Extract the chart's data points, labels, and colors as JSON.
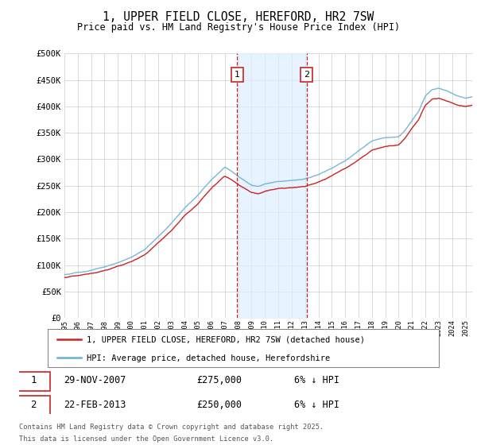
{
  "title": "1, UPPER FIELD CLOSE, HEREFORD, HR2 7SW",
  "subtitle": "Price paid vs. HM Land Registry's House Price Index (HPI)",
  "legend_line1": "1, UPPER FIELD CLOSE, HEREFORD, HR2 7SW (detached house)",
  "legend_line2": "HPI: Average price, detached house, Herefordshire",
  "sale1_date": "29-NOV-2007",
  "sale1_price": "£275,000",
  "sale1_pct": "6% ↓ HPI",
  "sale2_date": "22-FEB-2013",
  "sale2_price": "£250,000",
  "sale2_pct": "6% ↓ HPI",
  "footnote1": "Contains HM Land Registry data © Crown copyright and database right 2025.",
  "footnote2": "This data is licensed under the Open Government Licence v3.0.",
  "hpi_color": "#6baed6",
  "price_color": "#cc2222",
  "vline_color": "#cc2222",
  "shading_color": "#ddeeff",
  "grid_color": "#cccccc",
  "ylim": [
    0,
    500000
  ],
  "yticks": [
    0,
    50000,
    100000,
    150000,
    200000,
    250000,
    300000,
    350000,
    400000,
    450000,
    500000
  ],
  "xlim_start": 1995,
  "xlim_end": 2025.5,
  "sale1_year": 2007.91,
  "sale2_year": 2013.13,
  "hpi_points_x": [
    1995,
    1996,
    1997,
    1998,
    1999,
    2000,
    2001,
    2002,
    2003,
    2004,
    2005,
    2006,
    2007,
    2007.5,
    2008,
    2008.5,
    2009,
    2009.5,
    2010,
    2011,
    2012,
    2013,
    2014,
    2015,
    2016,
    2017,
    2018,
    2019,
    2020,
    2020.5,
    2021,
    2021.5,
    2022,
    2022.5,
    2023,
    2023.5,
    2024,
    2024.5,
    2025,
    2025.5
  ],
  "hpi_points_y": [
    82000,
    86000,
    90000,
    96000,
    104000,
    114000,
    128000,
    152000,
    178000,
    208000,
    232000,
    262000,
    285000,
    278000,
    268000,
    260000,
    252000,
    250000,
    255000,
    260000,
    262000,
    264000,
    272000,
    284000,
    298000,
    316000,
    334000,
    340000,
    342000,
    355000,
    372000,
    390000,
    418000,
    430000,
    432000,
    428000,
    422000,
    418000,
    415000,
    418000
  ],
  "price_points_x": [
    1995,
    1996,
    1997,
    1998,
    1999,
    2000,
    2001,
    2002,
    2003,
    2004,
    2005,
    2006,
    2007,
    2007.5,
    2008,
    2008.5,
    2009,
    2009.5,
    2010,
    2011,
    2012,
    2013,
    2014,
    2015,
    2016,
    2017,
    2018,
    2019,
    2020,
    2020.5,
    2021,
    2021.5,
    2022,
    2022.5,
    2023,
    2023.5,
    2024,
    2024.5,
    2025,
    2025.5
  ],
  "price_points_y": [
    77000,
    81000,
    85000,
    91000,
    99000,
    108000,
    122000,
    145000,
    170000,
    198000,
    221000,
    250000,
    272000,
    265000,
    256000,
    248000,
    240000,
    238000,
    243000,
    248000,
    250000,
    252000,
    260000,
    272000,
    285000,
    302000,
    320000,
    326000,
    328000,
    341000,
    358000,
    374000,
    401000,
    413000,
    415000,
    411000,
    406000,
    402000,
    400000,
    402000
  ]
}
